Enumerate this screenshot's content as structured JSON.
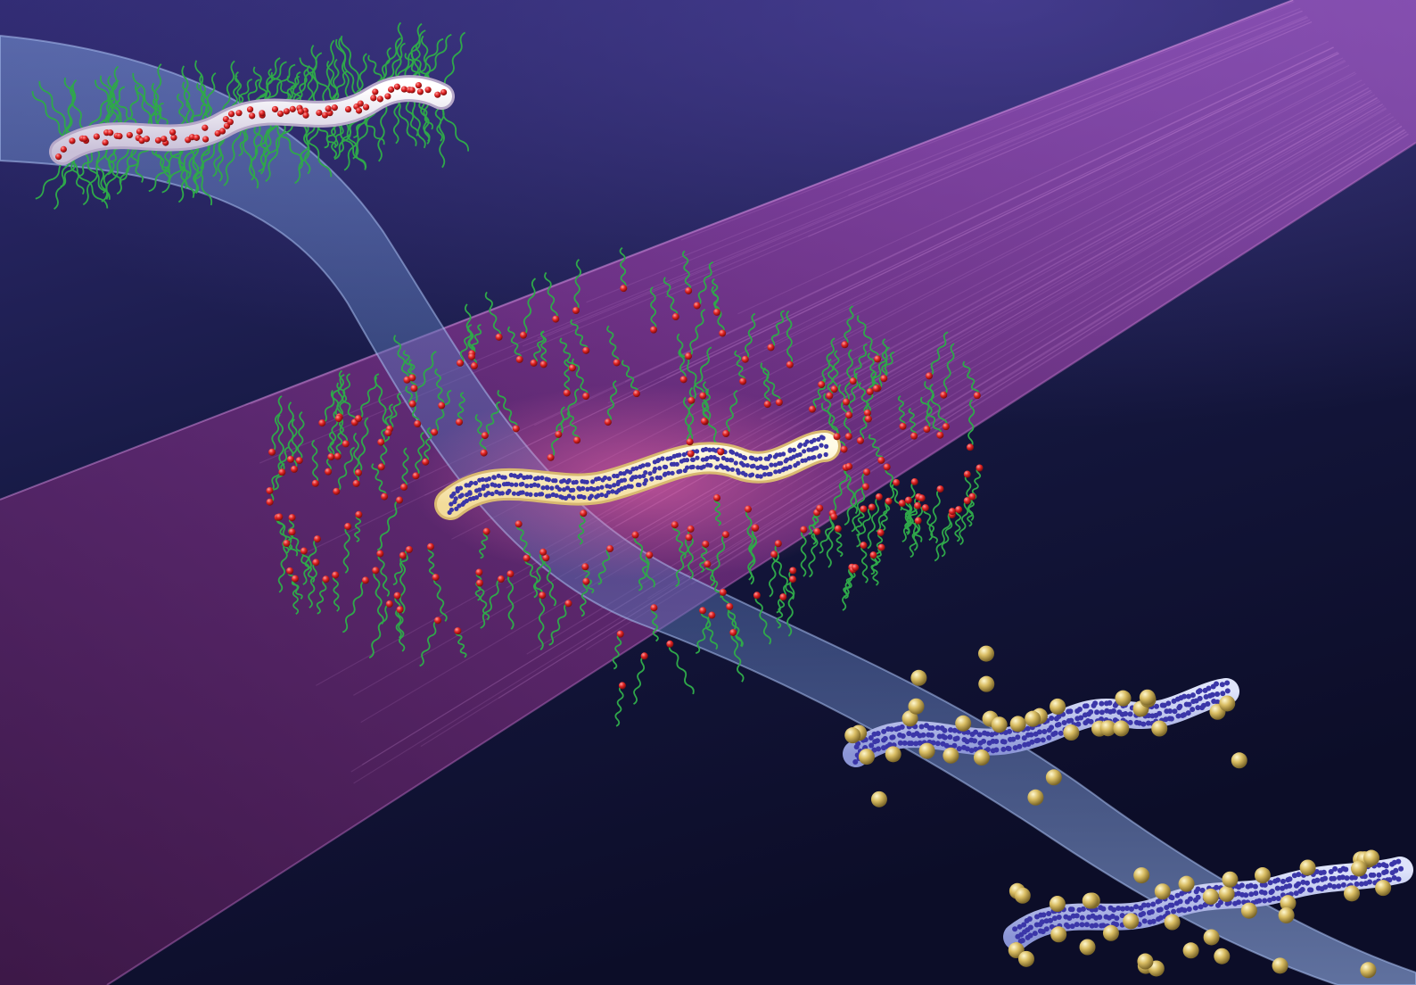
{
  "scene": {
    "description_free": true,
    "colors": {
      "background_top": "#2a2466",
      "background_bottom": "#0e0f2c",
      "light_beam": "#a23a9c",
      "light_beam_edge": "#c060c8",
      "channel": "#5d7fc2",
      "channel_edge": "#9bb4e8",
      "tube_plain": "#e8e4f0",
      "tube_heated": "#fff4c8",
      "tube_coated": "#aab4ea",
      "surface_dots": "#3b36a8",
      "ligand_heads": "#e02424",
      "ligand_chains": "#2fa84a",
      "gold_particles": "#d9bd63"
    },
    "stages": [
      {
        "name": "ligand-coated-tube"
      },
      {
        "name": "irradiated-tube-releasing-ligands"
      },
      {
        "name": "tube-with-gold-particles-1"
      },
      {
        "name": "tube-with-gold-particles-2"
      }
    ]
  }
}
